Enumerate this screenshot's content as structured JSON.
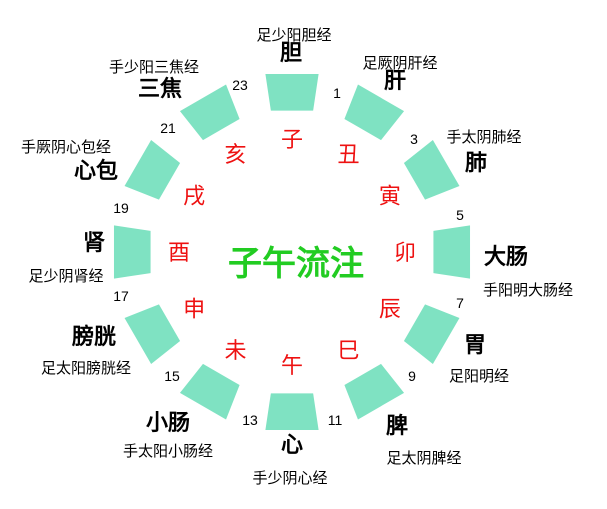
{
  "title": "子午流注",
  "colors": {
    "segment": "#7fe2c2",
    "branch": "#ee1111",
    "title": "#22cc22",
    "text": "#000000"
  },
  "segments": [
    {
      "branch": "子",
      "organ": "胆",
      "meridian": "足少阳胆经",
      "hour": "1"
    },
    {
      "branch": "丑",
      "organ": "肝",
      "meridian": "足厥阴肝经",
      "hour": "3"
    },
    {
      "branch": "寅",
      "organ": "肺",
      "meridian": "手太阴肺经",
      "hour": "5"
    },
    {
      "branch": "卯",
      "organ": "大肠",
      "meridian": "手阳明大肠经",
      "hour": "7"
    },
    {
      "branch": "辰",
      "organ": "胃",
      "meridian": "足阳明经",
      "hour": "9"
    },
    {
      "branch": "巳",
      "organ": "脾",
      "meridian": "足太阴脾经",
      "hour": "11"
    },
    {
      "branch": "午",
      "organ": "心",
      "meridian": "手少阴心经",
      "hour": "13"
    },
    {
      "branch": "未",
      "organ": "小肠",
      "meridian": "手太阳小肠经",
      "hour": "15"
    },
    {
      "branch": "申",
      "organ": "膀胱",
      "meridian": "足太阳膀胱经",
      "hour": "17"
    },
    {
      "branch": "酉",
      "organ": "肾",
      "meridian": "足少阴肾经",
      "hour": "19"
    },
    {
      "branch": "戌",
      "organ": "心包",
      "meridian": "手厥阴心包经",
      "hour": "21"
    },
    {
      "branch": "亥",
      "organ": "三焦",
      "meridian": "手少阳三焦经",
      "hour": "23"
    }
  ]
}
